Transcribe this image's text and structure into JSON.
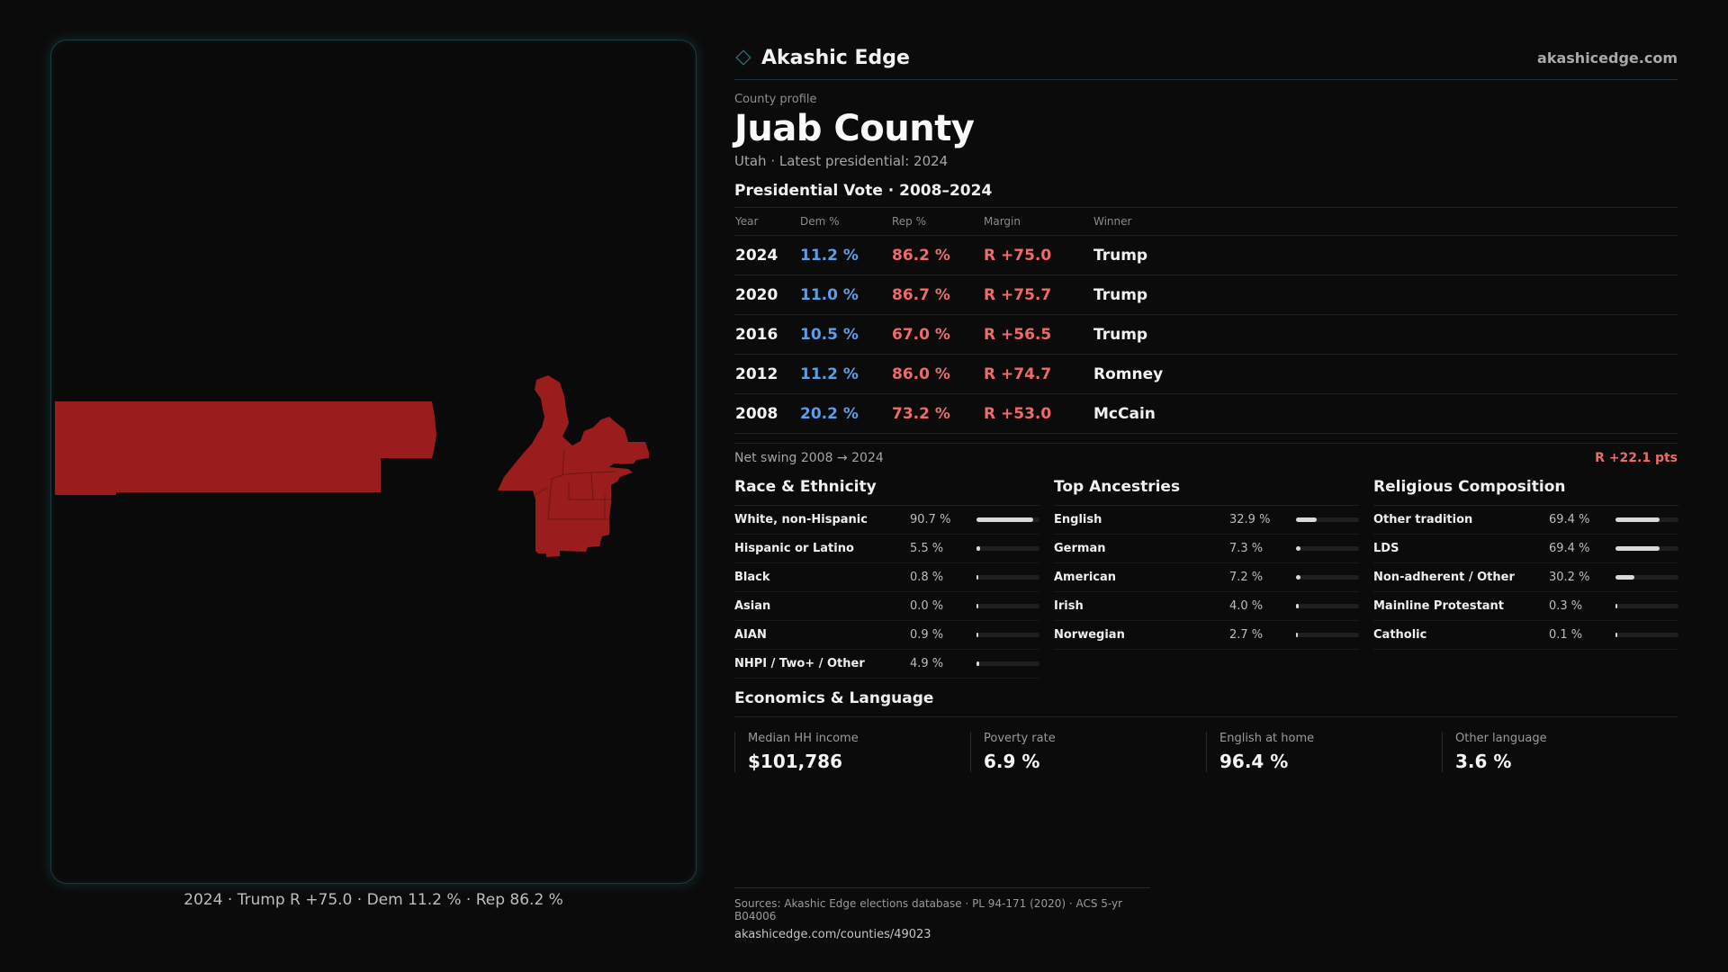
{
  "brand": {
    "name": "Akashic Edge",
    "url": "akashicedge.com",
    "icon": "diamond-icon",
    "accent": "#2a8c98"
  },
  "profile": {
    "eyebrow": "County profile",
    "title": "Juab County",
    "subtitle": "Utah · Latest presidential: 2024"
  },
  "votes": {
    "title": "Presidential Vote · 2008–2024",
    "headers": {
      "year": "Year",
      "dem": "Dem %",
      "rep": "Rep %",
      "margin": "Margin",
      "winner": "Winner"
    },
    "rows": [
      {
        "year": "2024",
        "dem": "11.2 %",
        "rep": "86.2 %",
        "margin": "R +75.0",
        "winner": "Trump"
      },
      {
        "year": "2020",
        "dem": "11.0 %",
        "rep": "86.7 %",
        "margin": "R +75.7",
        "winner": "Trump"
      },
      {
        "year": "2016",
        "dem": "10.5 %",
        "rep": "67.0 %",
        "margin": "R +56.5",
        "winner": "Trump"
      },
      {
        "year": "2012",
        "dem": "11.2 %",
        "rep": "86.0 %",
        "margin": "R +74.7",
        "winner": "Romney"
      },
      {
        "year": "2008",
        "dem": "20.2 %",
        "rep": "73.2 %",
        "margin": "R +53.0",
        "winner": "McCain"
      }
    ],
    "dem_color": "#5b9ee8",
    "rep_color": "#ee6b6b"
  },
  "swing": {
    "label": "Net swing 2008 → 2024",
    "value": "R +22.1 pts"
  },
  "race": {
    "title": "Race & Ethnicity",
    "rows": [
      {
        "label": "White, non-Hispanic",
        "value": "90.7 %",
        "pct": 90.7
      },
      {
        "label": "Hispanic or Latino",
        "value": "5.5 %",
        "pct": 5.5
      },
      {
        "label": "Black",
        "value": "0.8 %",
        "pct": 0.8
      },
      {
        "label": "Asian",
        "value": "0.0 %",
        "pct": 0.0
      },
      {
        "label": "AIAN",
        "value": "0.9 %",
        "pct": 0.9
      },
      {
        "label": "NHPI / Two+ / Other",
        "value": "4.9 %",
        "pct": 4.9
      }
    ]
  },
  "ancestry": {
    "title": "Top Ancestries",
    "rows": [
      {
        "label": "English",
        "value": "32.9 %",
        "pct": 32.9
      },
      {
        "label": "German",
        "value": "7.3 %",
        "pct": 7.3
      },
      {
        "label": "American",
        "value": "7.2 %",
        "pct": 7.2
      },
      {
        "label": "Irish",
        "value": "4.0 %",
        "pct": 4.0
      },
      {
        "label": "Norwegian",
        "value": "2.7 %",
        "pct": 2.7
      }
    ]
  },
  "religion": {
    "title": "Religious Composition",
    "rows": [
      {
        "label": "Other tradition",
        "value": "69.4 %",
        "pct": 69.4
      },
      {
        "label": "LDS",
        "value": "69.4 %",
        "pct": 69.4
      },
      {
        "label": "Non-adherent / Other",
        "value": "30.2 %",
        "pct": 30.2
      },
      {
        "label": "Mainline Protestant",
        "value": "0.3 %",
        "pct": 0.3
      },
      {
        "label": "Catholic",
        "value": "0.1 %",
        "pct": 0.1
      }
    ]
  },
  "economics": {
    "title": "Economics & Language",
    "cells": [
      {
        "label": "Median HH income",
        "value": "$101,786"
      },
      {
        "label": "Poverty rate",
        "value": "6.9 %"
      },
      {
        "label": "English at home",
        "value": "96.4 %"
      },
      {
        "label": "Other language",
        "value": "3.6 %"
      }
    ]
  },
  "map": {
    "caption": "2024 · Trump R +75.0 · Dem 11.2 % · Rep 86.2 %",
    "fill": "#9b1c1c"
  },
  "sources": {
    "text": "Sources: Akashic Edge elections database · PL 94-171 (2020) · ACS 5-yr B04006",
    "url": "akashicedge.com/counties/49023"
  }
}
